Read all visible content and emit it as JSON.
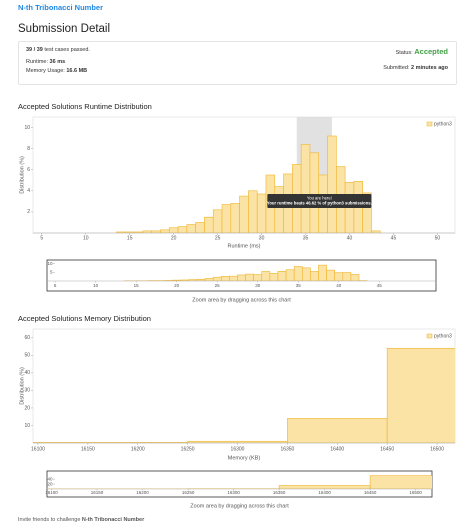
{
  "header": {
    "problem": "N-th Tribonacci Number",
    "title": "Submission Detail"
  },
  "summary": {
    "cases": "39 / 39",
    "cases_text": "test cases passed.",
    "runtime_label": "Runtime:",
    "runtime": "36 ms",
    "memory_label": "Memory Usage:",
    "memory": "16.6 MB",
    "status_label": "Status:",
    "status": "Accepted",
    "submitted_label": "Submitted:",
    "submitted": "2 minutes ago"
  },
  "chart_data": [
    {
      "type": "histogram",
      "title": "Accepted Solutions Runtime Distribution",
      "xlabel": "Runtime (ms)",
      "ylabel": "Distribution (%)",
      "bins": [
        13.5,
        14.5,
        15.5,
        16.5,
        17.5,
        18.5,
        19.5,
        20.5,
        21.5,
        22.5,
        23.5,
        24.5,
        25.5,
        26.5,
        27.5,
        28.5,
        29.5,
        30.5,
        31.5,
        32.5,
        33.5,
        34.5,
        35.5,
        36.5,
        37.5,
        38.5,
        39.5,
        40.5,
        41.5,
        42.5,
        43.5
      ],
      "series": [
        {
          "name": "python3",
          "color": "#fbe3a6",
          "edge_color": "#f0b429",
          "values": [
            0.1,
            0.1,
            0.1,
            0.2,
            0.2,
            0.3,
            0.5,
            0.6,
            0.8,
            1,
            1.5,
            2.2,
            2.7,
            2.8,
            3.5,
            4,
            3.7,
            5.5,
            4.4,
            5.6,
            6.5,
            8.4,
            7.6,
            5.5,
            9.2,
            6.3,
            4.8,
            4.9,
            3.8,
            0.2
          ]
        }
      ],
      "xlim": [
        4,
        52
      ],
      "ylim": [
        0,
        11
      ],
      "xticks": [
        5,
        10,
        15,
        20,
        25,
        30,
        35,
        40,
        45,
        50
      ],
      "yticks": [
        2,
        4,
        6,
        8,
        10
      ],
      "legend": "upper right",
      "highlight": [
        34,
        38
      ],
      "annotation": {
        "title": "You are here!",
        "text": "Your runtime beats 46.62 % of python3 submissions."
      },
      "navigator": {
        "xticks": [
          5,
          10,
          15,
          20,
          25,
          30,
          35,
          40,
          45
        ],
        "yticks": [
          5,
          10
        ],
        "caption": "Zoom area by dragging across this chart"
      }
    },
    {
      "type": "histogram",
      "title": "Accepted Solutions Memory Distribution",
      "xlabel": "Memory (KB)",
      "ylabel": "Distribution (%)",
      "bins": [
        16050,
        16250,
        16350,
        16450,
        16550
      ],
      "series": [
        {
          "name": "python3",
          "color": "#fbe3a6",
          "edge_color": "#f0b429",
          "values": [
            0.3,
            1,
            14,
            54
          ]
        }
      ],
      "xlim": [
        16095,
        16518
      ],
      "ylim": [
        0,
        65
      ],
      "xticks": [
        16100,
        16150,
        16200,
        16250,
        16300,
        16350,
        16400,
        16450,
        16500
      ],
      "yticks": [
        10,
        20,
        30,
        40,
        50,
        60
      ],
      "legend": "upper right",
      "navigator": {
        "xticks": [
          16100,
          16150,
          16200,
          16250,
          16300,
          16350,
          16400,
          16450,
          16500
        ],
        "yticks": [
          20,
          40
        ],
        "caption": "Zoom area by dragging across this chart"
      }
    }
  ],
  "footer": {
    "text": "Invite friends to challenge"
  }
}
